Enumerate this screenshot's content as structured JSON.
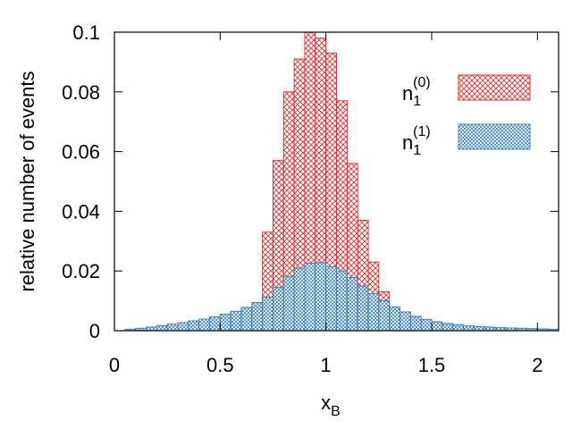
{
  "chart_data": {
    "type": "bar",
    "subtype": "overlaid-histogram",
    "xlabel": "x",
    "xlabel_sub": "B",
    "ylabel": "relative number of events",
    "xlim": [
      0,
      2.1
    ],
    "ylim": [
      0,
      0.1
    ],
    "bin_width": 0.05,
    "x_ticks": [
      {
        "value": 0,
        "label": "0"
      },
      {
        "value": 0.5,
        "label": "0.5"
      },
      {
        "value": 1,
        "label": "1"
      },
      {
        "value": 1.5,
        "label": "1.5"
      },
      {
        "value": 2,
        "label": "2"
      }
    ],
    "y_ticks": [
      {
        "value": 0,
        "label": "0"
      },
      {
        "value": 0.02,
        "label": "0.02"
      },
      {
        "value": 0.04,
        "label": "0.04"
      },
      {
        "value": 0.06,
        "label": "0.06"
      },
      {
        "value": 0.08,
        "label": "0.08"
      },
      {
        "value": 0.1,
        "label": "0.1"
      }
    ],
    "grid": false,
    "legend_position": "top-right",
    "series": [
      {
        "name": "n",
        "name_sub": "1",
        "name_sup": "(0)",
        "color": "#e03030",
        "pattern": "crosshatch",
        "draw_order": 1,
        "bin_starts": [
          0.5,
          0.55,
          0.6,
          0.65,
          0.7,
          0.75,
          0.8,
          0.85,
          0.9,
          0.95,
          1.0,
          1.05,
          1.1,
          1.15,
          1.2,
          1.25,
          1.3,
          1.35,
          1.4,
          1.45,
          1.5,
          1.55
        ],
        "values": [
          0.0005,
          0.001,
          0.002,
          0.006,
          0.033,
          0.057,
          0.08,
          0.091,
          0.1,
          0.098,
          0.093,
          0.077,
          0.056,
          0.037,
          0.023,
          0.013,
          0.0065,
          0.0045,
          0.003,
          0.002,
          0.001,
          0.0005
        ]
      },
      {
        "name": "n",
        "name_sub": "1",
        "name_sup": "(1)",
        "color": "#3a7fb8",
        "pattern": "crosshatch",
        "draw_order": 2,
        "bin_starts": [
          0.05,
          0.1,
          0.15,
          0.2,
          0.25,
          0.3,
          0.35,
          0.4,
          0.45,
          0.5,
          0.55,
          0.6,
          0.65,
          0.7,
          0.75,
          0.8,
          0.85,
          0.9,
          0.95,
          1.0,
          1.05,
          1.1,
          1.15,
          1.2,
          1.25,
          1.3,
          1.35,
          1.4,
          1.45,
          1.5,
          1.55,
          1.6,
          1.65,
          1.7,
          1.75,
          1.8,
          1.85,
          1.9,
          1.95,
          2.0,
          2.05
        ],
        "values": [
          0.0005,
          0.0008,
          0.0012,
          0.0017,
          0.0022,
          0.0027,
          0.0033,
          0.0039,
          0.0046,
          0.0055,
          0.0065,
          0.0078,
          0.0094,
          0.0112,
          0.0145,
          0.0182,
          0.021,
          0.0226,
          0.0228,
          0.0215,
          0.02,
          0.0178,
          0.015,
          0.0125,
          0.01,
          0.008,
          0.0063,
          0.0048,
          0.0038,
          0.003,
          0.0024,
          0.002,
          0.0016,
          0.0014,
          0.0012,
          0.001,
          0.0009,
          0.0008,
          0.0007,
          0.0006,
          0.0005
        ]
      }
    ]
  }
}
